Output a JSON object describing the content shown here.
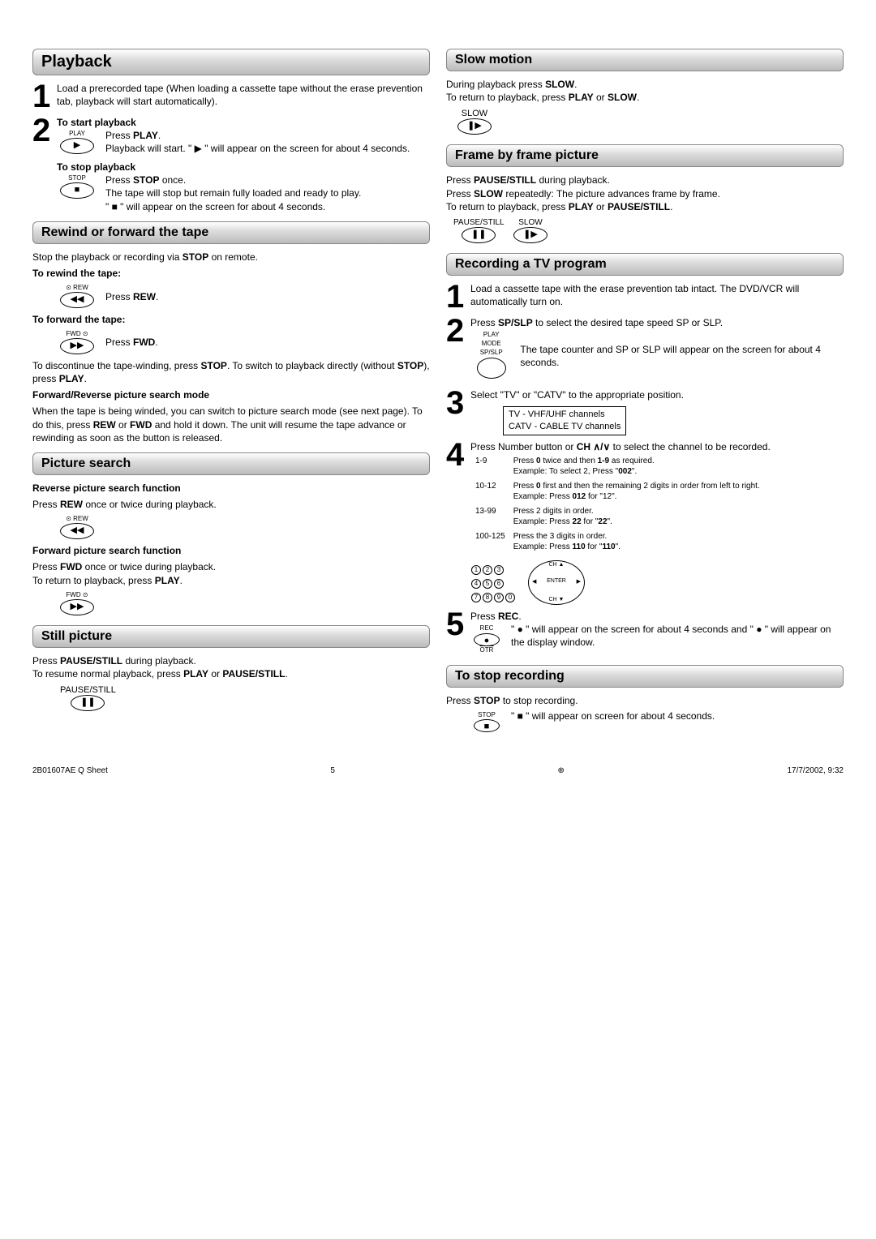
{
  "left": {
    "playback": {
      "title": "Playback",
      "step1": "Load a prerecorded tape (When loading a cassette tape without the erase prevention tab, playback will start automatically).",
      "step2_title": "To start playback",
      "step2_btnlabel": "PLAY",
      "step2_l1": "Press ",
      "step2_l1b": "PLAY",
      "step2_l1c": ".",
      "step2_l2a": "Playback will start. \" ",
      "step2_l2b": " \" will appear on the screen for about 4 seconds.",
      "stop_title": "To stop playback",
      "stop_btnlabel": "STOP",
      "stop_l1": "Press ",
      "stop_l1b": "STOP",
      "stop_l1c": " once.",
      "stop_l2": "The tape will stop but remain fully loaded and ready to play.",
      "stop_l3a": "\" ",
      "stop_l3b": " \" will appear on the screen for about 4 seconds."
    },
    "rewind": {
      "title": "Rewind or forward the tape",
      "intro": "Stop the playback or recording via STOP on remote.",
      "rew_title": "To rewind the tape:",
      "rew_btnlabel": "⊙ REW",
      "rew_txt": "Press REW.",
      "fwd_title": "To forward the tape:",
      "fwd_btnlabel": "FWD ⊙",
      "fwd_txt": "Press FWD.",
      "disc": "To discontinue the tape-winding, press STOP. To switch to playback directly (without STOP), press PLAY.",
      "search_title": "Forward/Reverse picture search mode",
      "search_txt": "When the tape is being winded, you can switch to picture search mode (see next page). To do this, press REW or FWD and hold it down. The unit will resume the tape advance or rewinding as soon as the button is released."
    },
    "picsearch": {
      "title": "Picture search",
      "rev_title": "Reverse picture search function",
      "rev_txt": "Press REW once or twice during playback.",
      "rev_btnlabel": "⊙ REW",
      "fwd_title": "Forward picture search function",
      "fwd_l1": "Press FWD once or twice during playback.",
      "fwd_l2": "To return to playback, press PLAY.",
      "fwd_btnlabel": "FWD ⊙"
    },
    "still": {
      "title": "Still picture",
      "l1": "Press PAUSE/STILL during playback.",
      "l2": "To resume normal playback, press PLAY or PAUSE/STILL.",
      "btnlabel": "PAUSE/STILL"
    }
  },
  "right": {
    "slow": {
      "title": "Slow motion",
      "l1": "During playback press SLOW.",
      "l2": "To return to playback, press PLAY or SLOW.",
      "btnlabel": "SLOW"
    },
    "frame": {
      "title": "Frame by frame picture",
      "l1": "Press PAUSE/STILL during playback.",
      "l2": "Press SLOW repeatedly: The picture advances frame by frame.",
      "l3": "To return to playback, press PLAY or PAUSE/STILL.",
      "btn1": "PAUSE/STILL",
      "btn2": "SLOW"
    },
    "rec": {
      "title": "Recording a TV program",
      "s1": "Load a cassette tape with the erase prevention tab intact.  The DVD/VCR will automatically turn on.",
      "s2a": "Press SP/SLP to select the desired tape speed SP or SLP.",
      "s2_btn_l1": "PLAY MODE",
      "s2_btn_l2": "SP/SLP",
      "s2b": "The tape counter and SP or SLP will appear on the screen for about 4 seconds.",
      "s3a": "Select \"TV\" or \"CATV\" to the appropriate position.",
      "s3_box1": "TV - VHF/UHF channels",
      "s3_box2": "CATV - CABLE TV channels",
      "s4a": "Press Number button or CH ∧/∨ to select the channel to be recorded.",
      "ch": [
        {
          "r": "1-9",
          "t": "Press 0 twice and then 1-9 as required.\nExample: To select 2, Press \"002\"."
        },
        {
          "r": "10-12",
          "t": "Press 0 first and then the remaining 2 digits in order from left to right.\nExample: Press 012 for \"12\"."
        },
        {
          "r": "13-99",
          "t": "Press 2 digits in order.\nExample: Press 22 for \"22\"."
        },
        {
          "r": "100-125",
          "t": "Press the 3 digits in order.\nExample: Press 110 for \"110\"."
        }
      ],
      "s5a": "Press REC.",
      "s5b": "\" ● \" will appear on the screen for about 4 seconds and \" ● \" will appear on the display window.",
      "s5_btn1": "REC",
      "s5_btn2": "OTR"
    },
    "stoprec": {
      "title": "To stop recording",
      "l1": "Press STOP to stop recording.",
      "btnlabel": "STOP",
      "l2": "\" ■ \" will appear on screen for about 4 seconds."
    }
  },
  "footer": {
    "left": "2B01607AE Q Sheet",
    "mid": "5",
    "right": "17/7/2002, 9:32"
  }
}
